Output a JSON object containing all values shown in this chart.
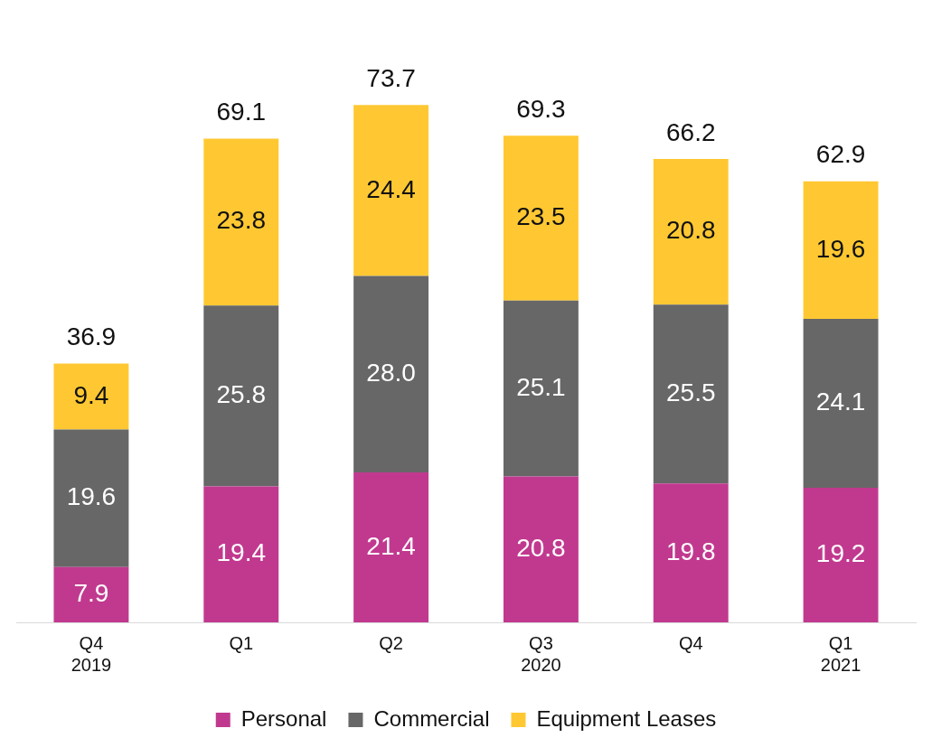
{
  "chart_data": {
    "type": "bar",
    "stacked": true,
    "categories": [
      "Q4\n2019",
      "Q1",
      "Q2",
      "Q3\n2020",
      "Q4",
      "Q1\n2021"
    ],
    "series": [
      {
        "name": "Personal",
        "color": "#c1398f",
        "values": [
          7.9,
          19.4,
          21.4,
          20.8,
          19.8,
          19.2
        ],
        "value_labels": [
          "7.9",
          "19.4",
          "21.4",
          "20.8",
          "19.8",
          "19.2"
        ]
      },
      {
        "name": "Commercial",
        "color": "#676767",
        "values": [
          19.6,
          25.8,
          28.0,
          25.1,
          25.5,
          24.1
        ],
        "value_labels": [
          "19.6",
          "25.8",
          "28.0",
          "25.1",
          "25.5",
          "24.1"
        ]
      },
      {
        "name": "Equipment Leases",
        "color": "#ffc832",
        "values": [
          9.4,
          23.8,
          24.4,
          23.5,
          20.8,
          19.6
        ],
        "value_labels": [
          "9.4",
          "23.8",
          "24.4",
          "23.5",
          "20.8",
          "19.6"
        ]
      }
    ],
    "totals": [
      "36.9",
      "69.1",
      "73.7",
      "69.3",
      "66.2",
      "62.9"
    ],
    "legend": "bottom",
    "grid": false
  }
}
